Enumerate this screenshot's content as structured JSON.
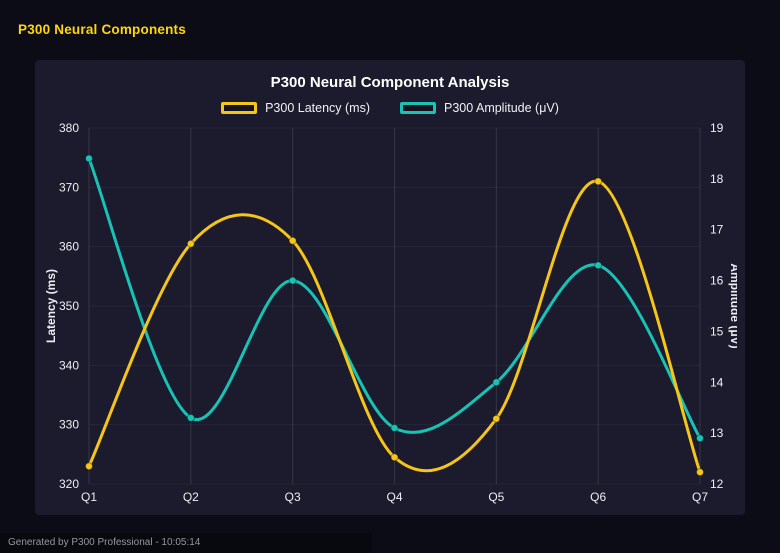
{
  "page": {
    "title": "P300 Neural Components",
    "footer": "Generated by P300 Professional - 10:05:14"
  },
  "chart": {
    "title": "P300 Neural Component Analysis"
  },
  "colors": {
    "background": "#0c0c16",
    "panel": "#1b1b2d",
    "accent_yellow": "#ffd60a",
    "latency_line": "#f5c51a",
    "amplitude_line": "#19c2b5"
  },
  "chart_data": {
    "type": "line",
    "title": "P300 Neural Component Analysis",
    "categories": [
      "Q1",
      "Q2",
      "Q3",
      "Q4",
      "Q5",
      "Q6",
      "Q7"
    ],
    "series": [
      {
        "name": "P300 Latency (ms)",
        "axis": "left",
        "color": "#f5c51a",
        "values": [
          323,
          360.5,
          361,
          324.5,
          331,
          371,
          322
        ]
      },
      {
        "name": "P300 Amplitude (μV)",
        "axis": "right",
        "color": "#19c2b5",
        "values": [
          18.4,
          13.3,
          16.0,
          13.1,
          14.0,
          16.3,
          12.9
        ]
      }
    ],
    "y_left": {
      "label": "Latency (ms)",
      "min": 320,
      "max": 380,
      "step": 10
    },
    "y_right": {
      "label": "Amplitude (μV)",
      "min": 12,
      "max": 19,
      "step": 1
    },
    "grid": true,
    "curve": "smooth",
    "legend_position": "top"
  }
}
